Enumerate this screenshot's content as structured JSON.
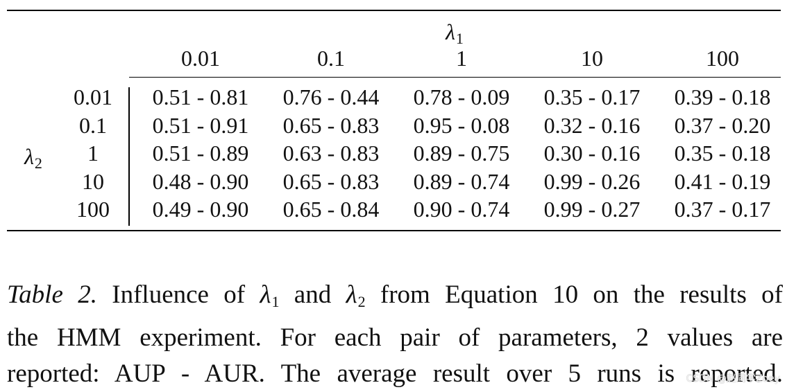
{
  "table": {
    "col_var_symbol": "λ",
    "col_var_sub": "1",
    "row_var_symbol": "λ",
    "row_var_sub": "2",
    "col_headers": [
      "0.01",
      "0.1",
      "1",
      "10",
      "100"
    ],
    "row_headers": [
      "0.01",
      "0.1",
      "1",
      "10",
      "100"
    ],
    "rows": [
      [
        "0.51 - 0.81",
        "0.76 - 0.44",
        "0.78 - 0.09",
        "0.35 - 0.17",
        "0.39 - 0.18"
      ],
      [
        "0.51 - 0.91",
        "0.65 - 0.83",
        "0.95 - 0.08",
        "0.32 - 0.16",
        "0.37 - 0.20"
      ],
      [
        "0.51 - 0.89",
        "0.63 - 0.83",
        "0.89 - 0.75",
        "0.30 - 0.16",
        "0.35 - 0.18"
      ],
      [
        "0.48 - 0.90",
        "0.65 - 0.83",
        "0.89 - 0.74",
        "0.99 - 0.26",
        "0.41 - 0.19"
      ],
      [
        "0.49 - 0.90",
        "0.65 - 0.84",
        "0.90 - 0.74",
        "0.99 - 0.27",
        "0.37 - 0.17"
      ]
    ]
  },
  "caption": {
    "label": "Table 2.",
    "t1": " Influence of ",
    "l1_sym": "λ",
    "l1_sub": "1",
    "t2": " and ",
    "l2_sym": "λ",
    "l2_sub": "2",
    "t3": " from Equation 10 on the results of",
    "line2": "the HMM experiment. For each pair of parameters, 2 values are",
    "line3": "reported: AUP - AUR. The average result over 5 runs is reported."
  },
  "watermark": "CSDN @赵同学Zoey"
}
